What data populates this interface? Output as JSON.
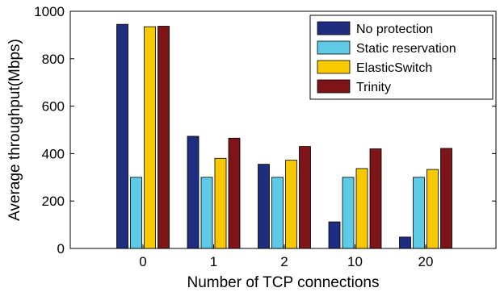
{
  "chart_data": {
    "type": "bar",
    "categories": [
      "0",
      "1",
      "2",
      "10",
      "20"
    ],
    "series": [
      {
        "name": "No protection",
        "values": [
          945,
          473,
          355,
          112,
          48
        ],
        "color": "#1f2d80"
      },
      {
        "name": "Static reservation",
        "values": [
          300,
          300,
          300,
          300,
          300
        ],
        "color": "#5ecbe6"
      },
      {
        "name": "ElasticSwitch",
        "values": [
          935,
          380,
          372,
          337,
          333
        ],
        "color": "#f8c800"
      },
      {
        "name": "Trinity",
        "values": [
          937,
          465,
          430,
          420,
          422
        ],
        "color": "#7d1518"
      }
    ],
    "xlabel": "Number of TCP connections",
    "ylabel": "Average throughput(Mbps)",
    "ylim": [
      0,
      1000
    ],
    "yticks": [
      0,
      200,
      400,
      600,
      800,
      1000
    ],
    "legend_position": "top-right",
    "grid": false
  }
}
